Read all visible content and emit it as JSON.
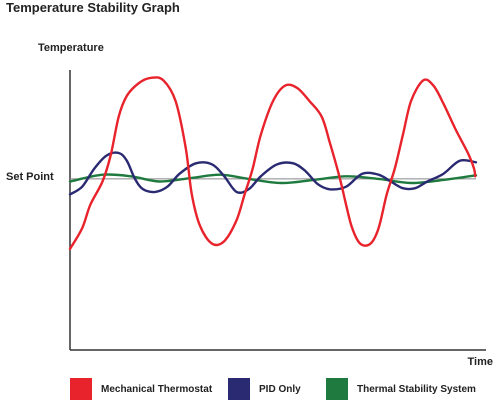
{
  "chart_data": {
    "type": "line",
    "title": "Temperature Stability Graph",
    "ylabel": "Temperature",
    "xlabel": "Time",
    "reference_line": {
      "label": "Set Point",
      "y": 0
    },
    "xlim": [
      0,
      100
    ],
    "ylim": [
      -3.3,
      2.1
    ],
    "grid": false,
    "legend": "bottom",
    "series": [
      {
        "name": "Mechanical Thermostat",
        "color": "#e8232b",
        "points": [
          [
            0,
            -1.35
          ],
          [
            3,
            -0.95
          ],
          [
            5,
            -0.5
          ],
          [
            8,
            -0.05
          ],
          [
            10,
            0.45
          ],
          [
            12,
            1.2
          ],
          [
            14,
            1.6
          ],
          [
            17,
            1.85
          ],
          [
            20,
            1.95
          ],
          [
            23,
            1.9
          ],
          [
            26,
            1.5
          ],
          [
            28.5,
            0.6
          ],
          [
            30,
            -0.3
          ],
          [
            32,
            -0.9
          ],
          [
            35,
            -1.25
          ],
          [
            38,
            -1.2
          ],
          [
            41,
            -0.8
          ],
          [
            43,
            -0.3
          ],
          [
            45,
            0.2
          ],
          [
            47,
            0.85
          ],
          [
            50,
            1.5
          ],
          [
            53,
            1.8
          ],
          [
            56,
            1.75
          ],
          [
            59,
            1.5
          ],
          [
            62,
            1.2
          ],
          [
            64,
            0.7
          ],
          [
            66.5,
            0.0
          ],
          [
            68,
            -0.5
          ],
          [
            69.5,
            -0.95
          ],
          [
            71.5,
            -1.25
          ],
          [
            74,
            -1.25
          ],
          [
            76,
            -0.95
          ],
          [
            78,
            -0.3
          ],
          [
            80,
            0.2
          ],
          [
            82,
            0.85
          ],
          [
            84,
            1.5
          ],
          [
            87,
            1.9
          ],
          [
            89.5,
            1.8
          ],
          [
            92,
            1.45
          ],
          [
            95,
            0.95
          ],
          [
            98,
            0.5
          ],
          [
            99.5,
            0.2
          ],
          [
            99.8,
            0.05
          ]
        ]
      },
      {
        "name": "PID Only",
        "color": "#2a2a72",
        "points": [
          [
            0,
            -0.3
          ],
          [
            3,
            -0.15
          ],
          [
            6,
            0.2
          ],
          [
            9,
            0.45
          ],
          [
            12,
            0.5
          ],
          [
            14,
            0.35
          ],
          [
            16,
            0.0
          ],
          [
            18,
            -0.2
          ],
          [
            21,
            -0.25
          ],
          [
            24,
            -0.15
          ],
          [
            27,
            0.1
          ],
          [
            31,
            0.3
          ],
          [
            35,
            0.28
          ],
          [
            38,
            0.05
          ],
          [
            41,
            -0.25
          ],
          [
            44,
            -0.2
          ],
          [
            47,
            0.05
          ],
          [
            51,
            0.28
          ],
          [
            55,
            0.3
          ],
          [
            58,
            0.15
          ],
          [
            61,
            -0.1
          ],
          [
            64,
            -0.2
          ],
          [
            68,
            -0.15
          ],
          [
            72,
            0.1
          ],
          [
            76,
            0.08
          ],
          [
            79,
            -0.05
          ],
          [
            82,
            -0.18
          ],
          [
            85,
            -0.18
          ],
          [
            88,
            -0.05
          ],
          [
            92,
            0.1
          ],
          [
            96,
            0.35
          ],
          [
            100,
            0.32
          ]
        ]
      },
      {
        "name": "Thermal Stability System",
        "color": "#1e7a3e",
        "points": [
          [
            0,
            -0.05
          ],
          [
            8,
            0.08
          ],
          [
            15,
            0.05
          ],
          [
            22,
            -0.05
          ],
          [
            30,
            0.02
          ],
          [
            37,
            0.08
          ],
          [
            44,
            0.0
          ],
          [
            52,
            -0.08
          ],
          [
            60,
            -0.02
          ],
          [
            68,
            0.05
          ],
          [
            76,
            0.0
          ],
          [
            84,
            -0.08
          ],
          [
            92,
            -0.02
          ],
          [
            100,
            0.07
          ]
        ]
      }
    ]
  }
}
